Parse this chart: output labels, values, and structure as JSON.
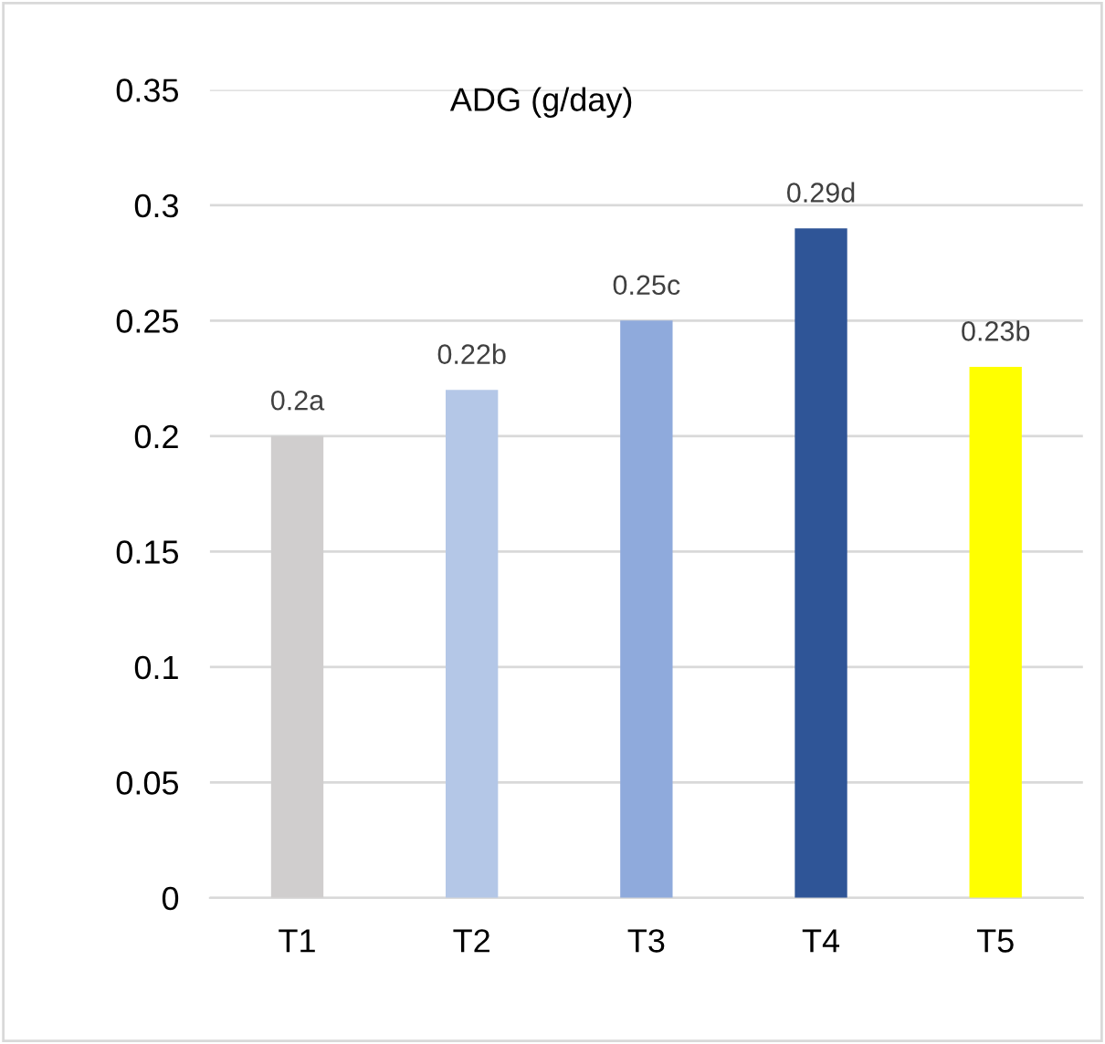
{
  "chart_data": {
    "type": "bar",
    "title": "ADG (g/day)",
    "categories": [
      "T1",
      "T2",
      "T3",
      "T4",
      "T5"
    ],
    "values": [
      0.2,
      0.22,
      0.25,
      0.29,
      0.23
    ],
    "colors": [
      "#d0cece",
      "#b4c7e7",
      "#8faadc",
      "#2f5597",
      "#ffff00"
    ],
    "value_labels": [
      "0.2a",
      "0.22b",
      "0.25c",
      "0.29d",
      "0.23b"
    ],
    "ylim": [
      0,
      0.35
    ],
    "yticks": [
      0,
      0.05,
      0.1,
      0.15,
      0.2,
      0.25,
      0.3,
      0.35
    ],
    "grid": "y"
  }
}
